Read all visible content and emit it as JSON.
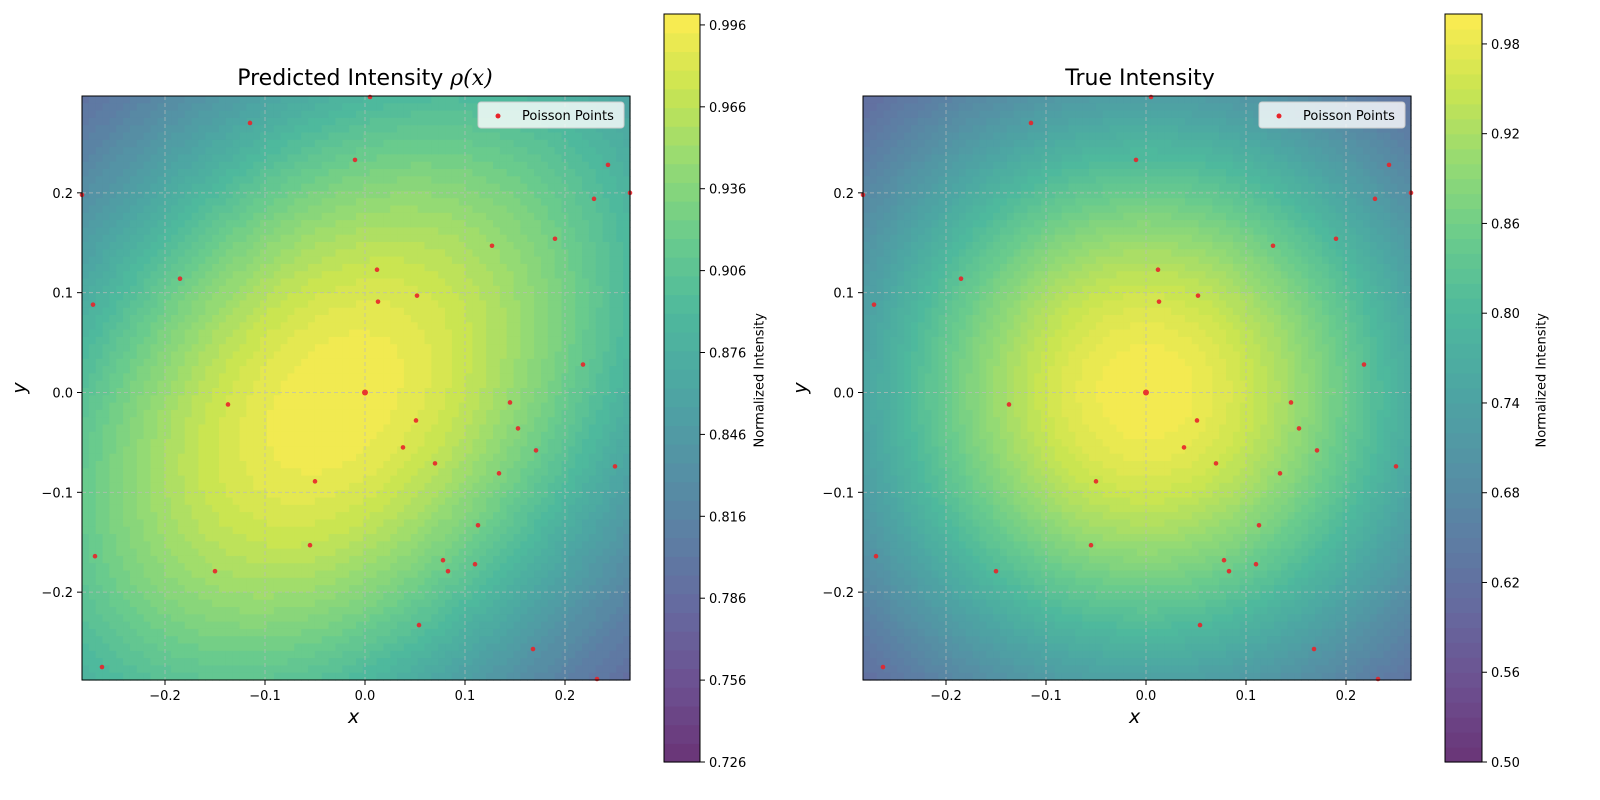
{
  "chart_data": [
    {
      "type": "heatmap",
      "title": "Predicted Intensity ρ(x)",
      "title_main": "Predicted Intensity ",
      "title_math": "ρ(x)",
      "xlabel": "x",
      "ylabel": "y",
      "xlim": [
        -0.283,
        0.265
      ],
      "ylim": [
        -0.288,
        0.297
      ],
      "xticks": [
        -0.2,
        -0.1,
        0.0,
        0.1,
        0.2
      ],
      "yticks": [
        -0.2,
        -0.1,
        0.0,
        0.1,
        0.2
      ],
      "xtick_labels": [
        "−0.2",
        "−0.1",
        "0.0",
        "0.1",
        "0.2"
      ],
      "ytick_labels": [
        "−0.2",
        "−0.1",
        "0.0",
        "0.1",
        "0.2"
      ],
      "grid": true,
      "legend": {
        "label": "Poisson Points",
        "location": "upper right"
      },
      "surface": {
        "model": "anisotropic gaussian",
        "center": [
          -0.03,
          -0.01
        ],
        "peak": 1.0,
        "min": 0.726,
        "correlation": "tilted"
      },
      "colorbar": {
        "label": "Normalized Intensity",
        "range": [
          0.726,
          1.0
        ],
        "ticks": [
          0.726,
          0.756,
          0.786,
          0.816,
          0.846,
          0.876,
          0.906,
          0.936,
          0.966,
          0.996
        ],
        "tick_labels": [
          "0.726",
          "0.756",
          "0.786",
          "0.816",
          "0.846",
          "0.876",
          "0.906",
          "0.936",
          "0.966",
          "0.996"
        ]
      }
    },
    {
      "type": "heatmap",
      "title": "True Intensity",
      "xlabel": "x",
      "ylabel": "y",
      "xlim": [
        -0.283,
        0.265
      ],
      "ylim": [
        -0.288,
        0.297
      ],
      "xticks": [
        -0.2,
        -0.1,
        0.0,
        0.1,
        0.2
      ],
      "yticks": [
        -0.2,
        -0.1,
        0.0,
        0.1,
        0.2
      ],
      "xtick_labels": [
        "−0.2",
        "−0.1",
        "0.0",
        "0.1",
        "0.2"
      ],
      "ytick_labels": [
        "−0.2",
        "−0.1",
        "0.0",
        "0.1",
        "0.2"
      ],
      "grid": true,
      "legend": {
        "label": "Poisson Points",
        "location": "upper right"
      },
      "surface": {
        "model": "isotropic gaussian",
        "center": [
          0.0,
          0.0
        ],
        "peak": 1.0,
        "min": 0.5
      },
      "colorbar": {
        "label": "Normalized Intensity",
        "range": [
          0.5,
          1.0
        ],
        "ticks": [
          0.5,
          0.56,
          0.62,
          0.68,
          0.74,
          0.8,
          0.86,
          0.92,
          0.98
        ],
        "tick_labels": [
          "0.50",
          "0.56",
          "0.62",
          "0.68",
          "0.74",
          "0.80",
          "0.86",
          "0.92",
          "0.98"
        ]
      }
    }
  ],
  "points": {
    "name": "Poisson Points",
    "color": "#e8242a",
    "x": [
      0.0,
      0.012,
      0.013,
      0.052,
      -0.01,
      -0.115,
      -0.185,
      -0.272,
      -0.137,
      0.051,
      0.038,
      0.07,
      0.134,
      0.171,
      0.145,
      0.153,
      0.127,
      0.19,
      0.218,
      0.25,
      0.229,
      0.243,
      -0.05,
      -0.055,
      -0.15,
      -0.27,
      -0.263,
      0.078,
      0.083,
      0.11,
      0.113,
      0.054,
      0.168,
      0.232,
      0.005,
      -0.283,
      0.265
    ],
    "y": [
      0.0,
      0.123,
      0.091,
      0.097,
      0.233,
      0.27,
      0.114,
      0.088,
      -0.012,
      -0.028,
      -0.055,
      -0.071,
      -0.081,
      -0.058,
      -0.01,
      -0.036,
      0.147,
      0.154,
      0.028,
      -0.074,
      0.194,
      0.228,
      -0.089,
      -0.153,
      -0.179,
      -0.164,
      -0.275,
      -0.168,
      -0.179,
      -0.172,
      -0.133,
      -0.233,
      -0.257,
      -0.287,
      0.296,
      0.198,
      0.2
    ]
  }
}
